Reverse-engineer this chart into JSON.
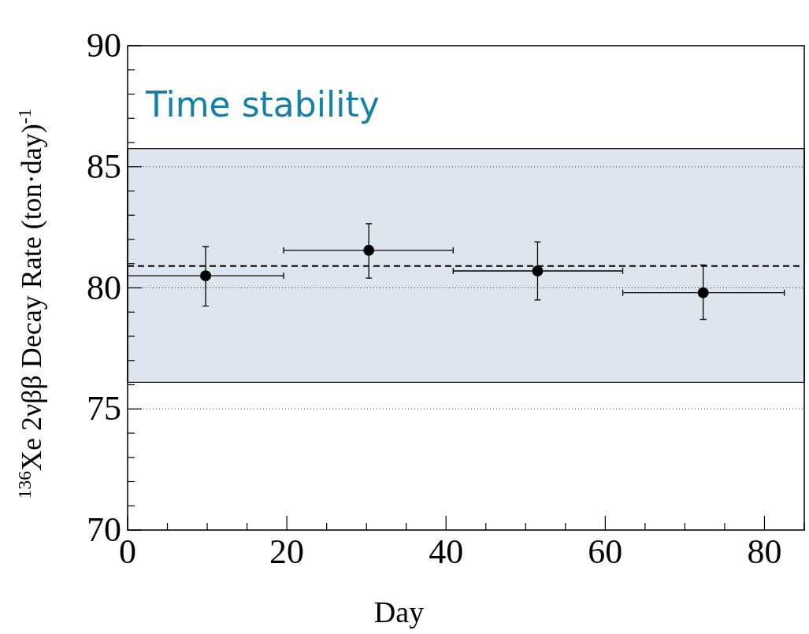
{
  "chart_data": {
    "type": "scatter",
    "title": "Time stability",
    "xlabel": "Day",
    "ylabel": "$^{136}$Xe 2νββ Decay Rate (ton·day)$^{-1}$",
    "x": [
      9.8,
      30.3,
      51.5,
      72.3
    ],
    "series": [
      {
        "color": "#000000",
        "values": [
          80.5,
          81.55,
          80.7,
          79.8
        ],
        "errors": [
          [
            79.25,
            81.7
          ],
          [
            80.4,
            82.65
          ],
          [
            79.5,
            81.9
          ],
          [
            78.7,
            80.95
          ]
        ],
        "xerrors": [
          [
            0,
            19.6
          ],
          [
            19.6,
            40.9
          ],
          [
            40.9,
            62.2
          ],
          [
            62.2,
            82.5
          ]
        ]
      }
    ],
    "marker": "circle",
    "xlim": [
      0,
      85
    ],
    "ylim": [
      70,
      90
    ],
    "xticks": [
      0,
      {
        "value": 5,
        "label": null
      },
      {
        "value": 10,
        "label": null
      },
      {
        "value": 15,
        "label": null
      },
      20,
      {
        "value": 25,
        "label": null
      },
      {
        "value": 30,
        "label": null
      },
      {
        "value": 35,
        "label": null
      },
      40,
      {
        "value": 45,
        "label": null
      },
      {
        "value": 50,
        "label": null
      },
      {
        "value": 55,
        "label": null
      },
      60,
      {
        "value": 65,
        "label": null
      },
      {
        "value": 70,
        "label": null
      },
      {
        "value": 75,
        "label": null
      },
      80,
      {
        "value": 85,
        "label": null
      }
    ],
    "yticks": [
      70,
      {
        "value": 71,
        "label": null
      },
      {
        "value": 72,
        "label": null
      },
      {
        "value": 73,
        "label": null
      },
      {
        "value": 74,
        "label": null
      },
      75,
      {
        "value": 76,
        "label": null
      },
      {
        "value": 77,
        "label": null
      },
      {
        "value": 78,
        "label": null
      },
      {
        "value": 79,
        "label": null
      },
      80,
      {
        "value": 81,
        "label": null
      },
      {
        "value": 82,
        "label": null
      },
      {
        "value": 83,
        "label": null
      },
      {
        "value": 84,
        "label": null
      },
      85,
      {
        "value": 86,
        "label": null
      },
      {
        "value": 87,
        "label": null
      },
      {
        "value": 88,
        "label": null
      },
      {
        "value": 89,
        "label": null
      },
      90
    ],
    "grid": "y",
    "ref_lines": [
      {
        "axis": "y",
        "value": 80.9,
        "color": "#000000",
        "line_style": "dashed"
      }
    ],
    "bands": [
      {
        "axis": "y",
        "from": 76.1,
        "to": 85.75,
        "color": "#dde6ee"
      }
    ]
  }
}
